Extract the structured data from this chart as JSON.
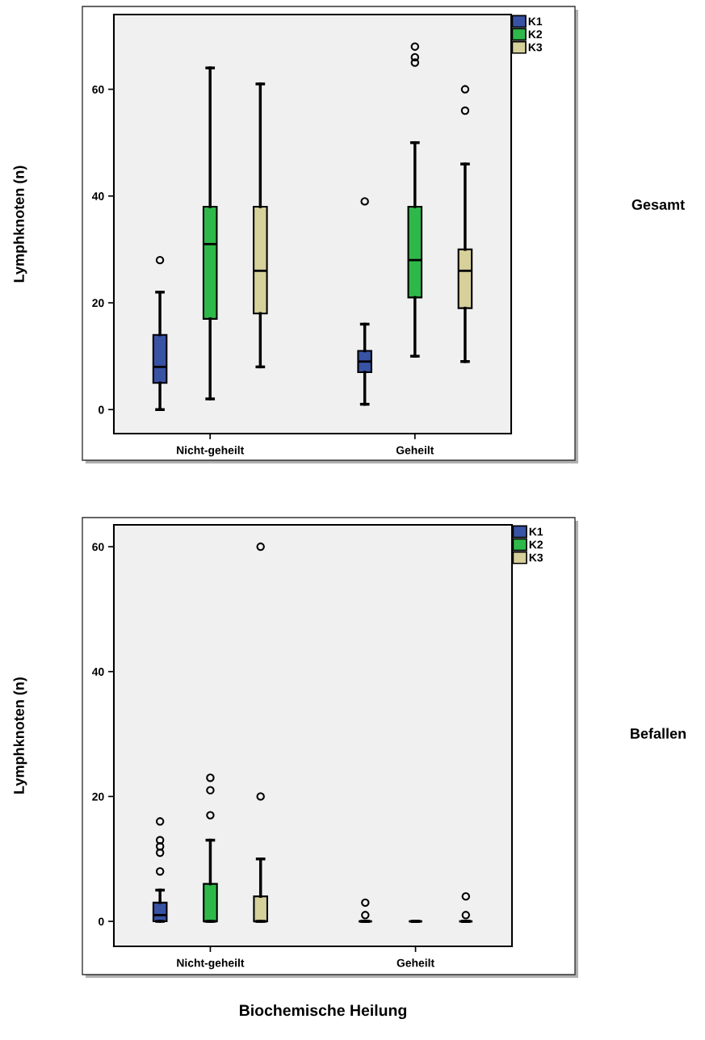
{
  "chart_data": [
    {
      "type": "box",
      "annotations": [
        "Gesamt"
      ],
      "ylabel": "Lymphknoten (n)",
      "categories": [
        "Nicht-geheilt",
        "Geheilt"
      ],
      "ylim": [
        -4.5,
        74
      ],
      "yticks": [
        0,
        20,
        40,
        60
      ],
      "legend": "top right",
      "grid": false,
      "series": [
        {
          "name": "K1",
          "color": "#3953a4",
          "boxes": [
            {
              "low": 0,
              "q1": 5,
              "median": 8,
              "q3": 14,
              "high": 22,
              "outliers": [
                28
              ]
            },
            {
              "low": 1,
              "q1": 7,
              "median": 9,
              "q3": 11,
              "high": 16,
              "outliers": [
                39
              ]
            }
          ]
        },
        {
          "name": "K2",
          "color": "#2fb84a",
          "boxes": [
            {
              "low": 2,
              "q1": 17,
              "median": 31,
              "q3": 38,
              "high": 64
            },
            {
              "low": 10,
              "q1": 21,
              "median": 28,
              "q3": 38,
              "high": 50,
              "outliers": [
                65,
                66,
                68
              ]
            }
          ]
        },
        {
          "name": "K3",
          "color": "#d6d09a",
          "boxes": [
            {
              "low": 8,
              "q1": 18,
              "median": 26,
              "q3": 38,
              "high": 61
            },
            {
              "low": 9,
              "q1": 19,
              "median": 26,
              "q3": 30,
              "high": 46,
              "outliers": [
                56,
                60
              ]
            }
          ]
        }
      ]
    },
    {
      "type": "box",
      "annotations": [
        "Befallen"
      ],
      "ylabel": "Lymphknoten (n)",
      "xlabel": "Biochemische Heilung",
      "categories": [
        "Nicht-geheilt",
        "Geheilt"
      ],
      "ylim": [
        -4,
        63.5
      ],
      "yticks": [
        0,
        20,
        40,
        60
      ],
      "legend": "top right",
      "grid": false,
      "series": [
        {
          "name": "K1",
          "color": "#3953a4",
          "boxes": [
            {
              "low": 0,
              "q1": 0,
              "median": 1,
              "q3": 3,
              "high": 5,
              "outliers": [
                8,
                11,
                12,
                13,
                16
              ]
            },
            {
              "low": 0,
              "q1": 0,
              "median": 0,
              "q3": 0,
              "high": 0,
              "outliers": [
                1,
                3
              ]
            }
          ]
        },
        {
          "name": "K2",
          "color": "#2fb84a",
          "boxes": [
            {
              "low": 0,
              "q1": 0,
              "median": 0,
              "q3": 6,
              "high": 13,
              "outliers": [
                17,
                21,
                23
              ]
            },
            {
              "low": 0,
              "q1": 0,
              "median": 0,
              "q3": 0,
              "high": 0
            }
          ]
        },
        {
          "name": "K3",
          "color": "#d6d09a",
          "boxes": [
            {
              "low": 0,
              "q1": 0,
              "median": 0,
              "q3": 4,
              "high": 10,
              "outliers": [
                20,
                60
              ]
            },
            {
              "low": 0,
              "q1": 0,
              "median": 0,
              "q3": 0,
              "high": 0,
              "outliers": [
                1,
                4
              ]
            }
          ]
        }
      ]
    }
  ]
}
